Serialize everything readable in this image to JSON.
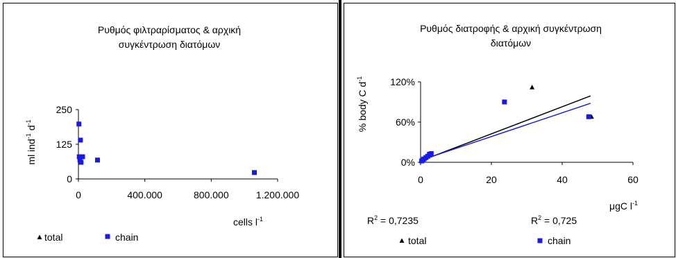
{
  "chart_data": [
    {
      "type": "scatter",
      "title_lines": [
        "Ρυθμός φιλτραρίσματος & αρχική",
        "συγκέντρωση διατόμων"
      ],
      "ylabel": "ml ind",
      "ylabel_sup1": "-1",
      "ylabel_mid": " d",
      "ylabel_sup2": "-1",
      "xlabel": "cells l",
      "xlabel_sup": "-1",
      "xlim": [
        0,
        1200000
      ],
      "ylim": [
        0,
        250
      ],
      "x_ticks": [
        0,
        400000,
        800000,
        1200000
      ],
      "x_tick_labels": [
        "0",
        "400.000",
        "800.000",
        "1.200.000"
      ],
      "y_ticks": [
        0,
        125,
        250
      ],
      "y_tick_labels": [
        "0",
        "125",
        "250"
      ],
      "grid": false,
      "legend_placement": "bottom",
      "legend": [
        {
          "name": "total",
          "marker": "triangle",
          "color": "#000000"
        },
        {
          "name": "chain",
          "marker": "square",
          "color": "#1a1ae6"
        }
      ],
      "series": [
        {
          "name": "chain",
          "color": "#1a1ae6",
          "points": [
            [
              3000,
              198
            ],
            [
              12000,
              140
            ],
            [
              5000,
              80
            ],
            [
              14000,
              80
            ],
            [
              25000,
              80
            ],
            [
              9000,
              68
            ],
            [
              16000,
              60
            ],
            [
              115000,
              68
            ],
            [
              1060000,
              23
            ]
          ]
        }
      ]
    },
    {
      "type": "scatter",
      "title_lines": [
        "Ρυθμός διατροφής & αρχική συγκέντρωση",
        "διατόμων"
      ],
      "ylabel": "% body C d",
      "ylabel_sup": "-1",
      "xlabel": "μgC l",
      "xlabel_sup": "-1",
      "xlim": [
        0,
        60
      ],
      "ylim": [
        0,
        120
      ],
      "x_ticks": [
        0,
        20,
        40,
        60
      ],
      "x_tick_labels": [
        "0",
        "20",
        "40",
        "60"
      ],
      "y_ticks": [
        0,
        60,
        120
      ],
      "y_tick_labels": [
        "0%",
        "60%",
        "120%"
      ],
      "grid": false,
      "legend_placement": "bottom",
      "legend": [
        {
          "name": "total",
          "marker": "triangle",
          "color": "#000000"
        },
        {
          "name": "chain",
          "marker": "square",
          "color": "#1a1ae6"
        }
      ],
      "r2_total": {
        "text": "R",
        "sup": "2",
        "rest": " = 0,7235"
      },
      "r2_chain": {
        "text": "R",
        "sup": "2",
        "rest": " = 0,725"
      },
      "series": [
        {
          "name": "total",
          "color": "#000000",
          "marker": "triangle",
          "points": [
            [
              31.5,
              112
            ],
            [
              48.3,
              68
            ]
          ],
          "trendline": [
            [
              0,
              2
            ],
            [
              48,
              99
            ]
          ]
        },
        {
          "name": "chain",
          "color": "#1a1ae6",
          "marker": "square",
          "points": [
            [
              0.3,
              2
            ],
            [
              0.6,
              4
            ],
            [
              1,
              5
            ],
            [
              1.5,
              7
            ],
            [
              2,
              9
            ],
            [
              2.5,
              12
            ],
            [
              3,
              13
            ],
            [
              23.7,
              90
            ],
            [
              47.5,
              68
            ]
          ],
          "trendline": [
            [
              0,
              3
            ],
            [
              48,
              88
            ]
          ]
        }
      ]
    }
  ]
}
